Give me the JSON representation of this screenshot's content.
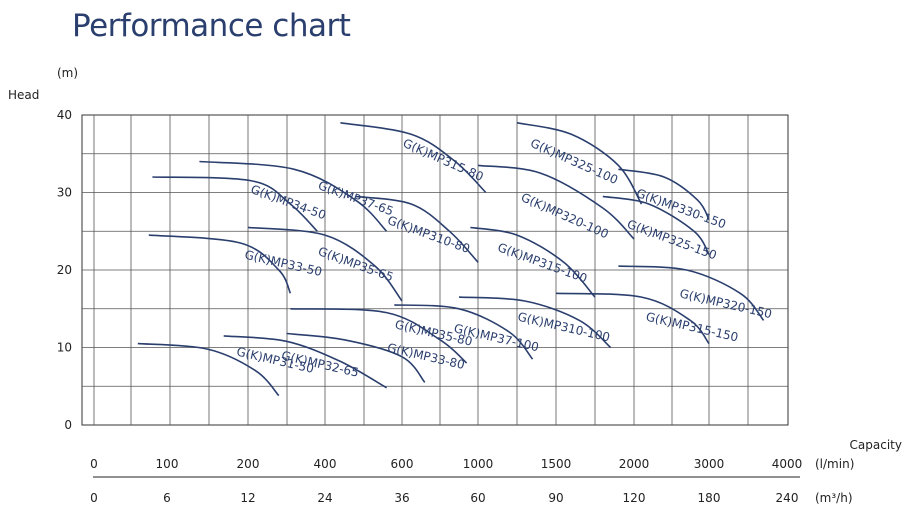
{
  "title": "Performance chart",
  "chart_data": {
    "type": "line",
    "title": "Performance chart",
    "ylabel": "Head",
    "yunit": "(m)",
    "ylim": [
      0,
      40
    ],
    "yticks": [
      0,
      10,
      20,
      30,
      40
    ],
    "xlabel": "Capacity",
    "x_axes": [
      {
        "unit": "(l/min)",
        "ticks": [
          "0",
          "100",
          "200",
          "400",
          "600",
          "1000",
          "1500",
          "2000",
          "3000",
          "4000"
        ]
      },
      {
        "unit": "(m³/h)",
        "ticks": [
          "0",
          "6",
          "12",
          "24",
          "36",
          "60",
          "90",
          "120",
          "180",
          "240"
        ]
      }
    ],
    "x_scale": "piecewise",
    "grid": true,
    "line_color": "#2b3f6e",
    "series": [
      {
        "name": "G(K)MP31-50",
        "x": [
          60,
          150,
          220,
          280
        ],
        "y": [
          10.5,
          9.8,
          7.0,
          3.8
        ],
        "label_at": [
          185,
          9.0
        ],
        "label_angle": 13
      },
      {
        "name": "G(K)MP32-65",
        "x": [
          170,
          300,
          440,
          560
        ],
        "y": [
          11.5,
          10.8,
          8.2,
          4.8
        ],
        "label_at": [
          285,
          8.5
        ],
        "label_angle": 13
      },
      {
        "name": "G(K)MP33-50",
        "x": [
          75,
          190,
          280,
          310
        ],
        "y": [
          24.5,
          23.5,
          20.0,
          17.0
        ],
        "label_at": [
          195,
          21.5
        ],
        "label_angle": 13
      },
      {
        "name": "G(K)MP33-80",
        "x": [
          300,
          450,
          600,
          720
        ],
        "y": [
          11.8,
          11.0,
          8.8,
          5.5
        ],
        "label_at": [
          560,
          9.5
        ],
        "label_angle": 13
      },
      {
        "name": "G(K)MP34-50",
        "x": [
          80,
          210,
          310,
          380
        ],
        "y": [
          32.0,
          31.5,
          28.5,
          25.0
        ],
        "label_at": [
          205,
          30.0
        ],
        "label_angle": 20
      },
      {
        "name": "G(K)MP35-65",
        "x": [
          200,
          400,
          530,
          600
        ],
        "y": [
          25.5,
          24.5,
          20.5,
          16.0
        ],
        "label_at": [
          380,
          22.0
        ],
        "label_angle": 20
      },
      {
        "name": "G(K)MP35-80",
        "x": [
          310,
          560,
          800,
          940
        ],
        "y": [
          15.0,
          14.5,
          11.0,
          8.0
        ],
        "label_at": [
          580,
          12.5
        ],
        "label_angle": 13
      },
      {
        "name": "G(K)MP37-65",
        "x": [
          140,
          320,
          480,
          560
        ],
        "y": [
          34.0,
          33.0,
          29.0,
          25.0
        ],
        "label_at": [
          380,
          30.5
        ],
        "label_angle": 20
      },
      {
        "name": "G(K)MP37-100",
        "x": [
          580,
          900,
          1200,
          1350
        ],
        "y": [
          15.5,
          15.0,
          12.0,
          8.5
        ],
        "label_at": [
          870,
          12.0
        ],
        "label_angle": 13
      },
      {
        "name": "G(K)MP310-80",
        "x": [
          480,
          650,
          850,
          1000
        ],
        "y": [
          29.5,
          28.5,
          25.0,
          21.0
        ],
        "label_at": [
          560,
          26.0
        ],
        "label_angle": 20
      },
      {
        "name": "G(K)MP310-100",
        "x": [
          900,
          1300,
          1650,
          1850
        ],
        "y": [
          16.5,
          16.0,
          13.5,
          10.0
        ],
        "label_at": [
          1250,
          13.5
        ],
        "label_angle": 13
      },
      {
        "name": "G(K)MP315-80",
        "x": [
          440,
          650,
          880,
          1050
        ],
        "y": [
          39.0,
          37.5,
          34.0,
          30.0
        ],
        "label_at": [
          600,
          36.0
        ],
        "label_angle": 24
      },
      {
        "name": "G(K)MP315-100",
        "x": [
          960,
          1250,
          1550,
          1750
        ],
        "y": [
          25.5,
          24.5,
          21.0,
          16.5
        ],
        "label_at": [
          1120,
          22.5
        ],
        "label_angle": 20
      },
      {
        "name": "G(K)MP315-150",
        "x": [
          1500,
          2100,
          2750,
          3000
        ],
        "y": [
          17.0,
          16.5,
          13.5,
          10.5
        ],
        "label_at": [
          2150,
          13.5
        ],
        "label_angle": 13
      },
      {
        "name": "G(K)MP320-100",
        "x": [
          1000,
          1400,
          1800,
          2000
        ],
        "y": [
          33.5,
          32.5,
          28.0,
          24.0
        ],
        "label_at": [
          1270,
          29.0
        ],
        "label_angle": 24
      },
      {
        "name": "G(K)MP320-150",
        "x": [
          1900,
          2700,
          3400,
          3700
        ],
        "y": [
          20.5,
          20.0,
          17.0,
          13.5
        ],
        "label_at": [
          2600,
          16.5
        ],
        "label_angle": 13
      },
      {
        "name": "G(K)MP325-100",
        "x": [
          1250,
          1600,
          1900,
          2100
        ],
        "y": [
          39.0,
          37.5,
          33.5,
          28.5
        ],
        "label_at": [
          1330,
          36.0
        ],
        "label_angle": 24
      },
      {
        "name": "G(K)MP325-150",
        "x": [
          1800,
          2200,
          2800,
          3000
        ],
        "y": [
          29.5,
          28.5,
          25.0,
          22.0
        ],
        "label_at": [
          1950,
          25.5
        ],
        "label_angle": 20
      },
      {
        "name": "G(K)MP330-150",
        "x": [
          1900,
          2400,
          2850,
          3000
        ],
        "y": [
          33.0,
          32.0,
          29.0,
          26.5
        ],
        "label_at": [
          2020,
          29.5
        ],
        "label_angle": 20
      }
    ]
  }
}
